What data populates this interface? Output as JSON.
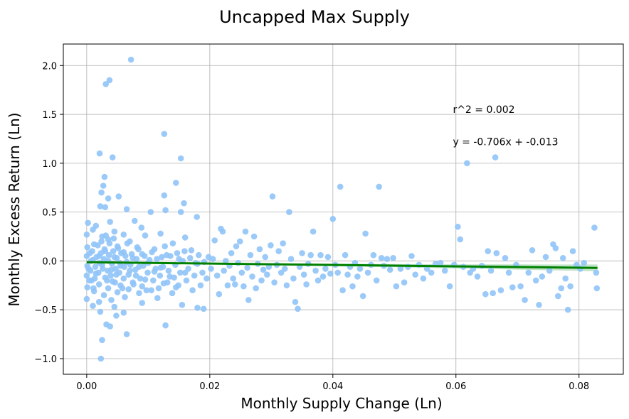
{
  "chart_data": {
    "type": "scatter",
    "title": "Uncapped Max Supply",
    "xlabel": "Monthly Supply Change (Ln)",
    "ylabel": "Monthly Excess Return (Ln)",
    "xlim": [
      -0.0038,
      0.0872
    ],
    "ylim": [
      -1.16,
      2.22
    ],
    "xticks": [
      0.0,
      0.02,
      0.04,
      0.06,
      0.08
    ],
    "xtick_labels": [
      "0.00",
      "0.02",
      "0.04",
      "0.06",
      "0.08"
    ],
    "yticks": [
      -1.0,
      -0.5,
      0.0,
      0.5,
      1.0,
      1.5,
      2.0
    ],
    "ytick_labels": [
      "−1.0",
      "−0.5",
      "0.0",
      "0.5",
      "1.0",
      "1.5",
      "2.0"
    ],
    "grid": true,
    "point_color": "#90c4f8",
    "regression": {
      "slope": -0.706,
      "intercept": -0.013,
      "x_range": [
        0.0,
        0.083
      ],
      "color": "#008000",
      "ci_color": "#b9dfc0",
      "ci_halfwidth_start": 0.006,
      "ci_halfwidth_end": 0.035
    },
    "annotations": [
      {
        "text": "r^2 = 0.002",
        "x": 0.0595,
        "y": 1.55
      },
      {
        "text": "y = -0.706x + -0.013",
        "x": 0.0595,
        "y": 1.22
      }
    ],
    "points": [
      [
        0.0072,
        2.06
      ],
      [
        0.0037,
        1.85
      ],
      [
        0.0031,
        1.81
      ],
      [
        0.0126,
        1.3
      ],
      [
        0.0021,
        1.1
      ],
      [
        0.0042,
        1.06
      ],
      [
        0.0153,
        1.05
      ],
      [
        0.0029,
        0.86
      ],
      [
        0.0145,
        0.8
      ],
      [
        0.0027,
        0.77
      ],
      [
        0.0024,
        0.7
      ],
      [
        0.0126,
        0.67
      ],
      [
        0.0052,
        0.66
      ],
      [
        0.0035,
        0.64
      ],
      [
        0.0158,
        0.59
      ],
      [
        0.0022,
        0.56
      ],
      [
        0.003,
        0.55
      ],
      [
        0.0065,
        0.53
      ],
      [
        0.0128,
        0.52
      ],
      [
        0.0104,
        0.5
      ],
      [
        0.0153,
        0.5
      ],
      [
        0.0179,
        0.45
      ],
      [
        0.0078,
        0.41
      ],
      [
        0.0038,
        0.4
      ],
      [
        0.0002,
        0.39
      ],
      [
        0.0015,
        0.36
      ],
      [
        0.0089,
        0.34
      ],
      [
        0.001,
        0.32
      ],
      [
        0.0045,
        0.3
      ],
      [
        0.012,
        0.28
      ],
      [
        0.006,
        0.27
      ],
      [
        0.0095,
        0.26
      ],
      [
        0.0025,
        0.25
      ],
      [
        0.016,
        0.24
      ],
      [
        0.0035,
        0.22
      ],
      [
        0.007,
        0.2
      ],
      [
        0.014,
        0.18
      ],
      [
        0.0012,
        0.17
      ],
      [
        0.005,
        0.15
      ],
      [
        0.0082,
        0.14
      ],
      [
        0.011,
        0.12
      ],
      [
        0.017,
        0.11
      ],
      [
        0.003,
        0.1
      ],
      [
        0.006,
        0.09
      ],
      [
        0.0005,
        0.08
      ],
      [
        0.009,
        0.07
      ],
      [
        0.013,
        0.06
      ],
      [
        0.002,
        0.05
      ],
      [
        0.0045,
        0.04
      ],
      [
        0.0075,
        0.03
      ],
      [
        0.015,
        0.02
      ],
      [
        0.001,
        0.01
      ],
      [
        0.0035,
        0.0
      ],
      [
        0.0065,
        -0.01
      ],
      [
        0.01,
        -0.02
      ],
      [
        0.018,
        -0.03
      ],
      [
        0.0025,
        -0.04
      ],
      [
        0.0055,
        -0.05
      ],
      [
        0.0085,
        -0.06
      ],
      [
        0.012,
        -0.07
      ],
      [
        0.0003,
        -0.08
      ],
      [
        0.004,
        -0.09
      ],
      [
        0.007,
        -0.1
      ],
      [
        0.011,
        -0.11
      ],
      [
        0.016,
        -0.12
      ],
      [
        0.0015,
        -0.13
      ],
      [
        0.0048,
        -0.14
      ],
      [
        0.008,
        -0.15
      ],
      [
        0.0135,
        -0.16
      ],
      [
        0.003,
        -0.17
      ],
      [
        0.006,
        -0.18
      ],
      [
        0.0095,
        -0.19
      ],
      [
        0.0008,
        -0.2
      ],
      [
        0.0042,
        -0.21
      ],
      [
        0.0075,
        -0.22
      ],
      [
        0.0125,
        -0.23
      ],
      [
        0.002,
        -0.24
      ],
      [
        0.0055,
        -0.25
      ],
      [
        0.009,
        -0.26
      ],
      [
        0.0145,
        -0.27
      ],
      [
        0.0035,
        -0.28
      ],
      [
        0.0068,
        -0.29
      ],
      [
        0.0105,
        -0.3
      ],
      [
        0.0012,
        -0.31
      ],
      [
        0.005,
        -0.32
      ],
      [
        0.0085,
        -0.33
      ],
      [
        0.0028,
        -0.35
      ],
      [
        0.0062,
        -0.37
      ],
      [
        0.0115,
        -0.38
      ],
      [
        0.004,
        -0.4
      ],
      [
        0.002,
        -0.42
      ],
      [
        0.009,
        -0.43
      ],
      [
        0.0155,
        -0.45
      ],
      [
        0.001,
        -0.46
      ],
      [
        0.0045,
        -0.47
      ],
      [
        0.018,
        -0.48
      ],
      [
        0.019,
        -0.49
      ],
      [
        0.0022,
        -0.52
      ],
      [
        0.006,
        -0.53
      ],
      [
        0.0048,
        -0.56
      ],
      [
        0.0032,
        -0.65
      ],
      [
        0.0038,
        -0.67
      ],
      [
        0.0128,
        -0.66
      ],
      [
        0.0065,
        -0.75
      ],
      [
        0.0025,
        -0.81
      ],
      [
        0.0023,
        -1.0
      ],
      [
        0.0,
        -0.39
      ],
      [
        0.0001,
        -0.27
      ],
      [
        0.0,
        -0.15
      ],
      [
        0.0001,
        -0.05
      ],
      [
        0.0,
        0.05
      ],
      [
        0.0001,
        0.14
      ],
      [
        0.0,
        0.27
      ],
      [
        0.0004,
        -0.2
      ],
      [
        0.0006,
        -0.1
      ],
      [
        0.0007,
        0.0
      ],
      [
        0.0009,
        0.1
      ],
      [
        0.0011,
        -0.28
      ],
      [
        0.0013,
        -0.18
      ],
      [
        0.0014,
        -0.06
      ],
      [
        0.0016,
        0.04
      ],
      [
        0.0018,
        0.16
      ],
      [
        0.0019,
        -0.12
      ],
      [
        0.0021,
        -0.02
      ],
      [
        0.0023,
        0.08
      ],
      [
        0.0024,
        0.2
      ],
      [
        0.0026,
        -0.08
      ],
      [
        0.0028,
        0.02
      ],
      [
        0.0029,
        0.12
      ],
      [
        0.0031,
        0.26
      ],
      [
        0.0033,
        -0.2
      ],
      [
        0.0034,
        -0.1
      ],
      [
        0.0036,
        0.06
      ],
      [
        0.0037,
        0.18
      ],
      [
        0.0039,
        -0.15
      ],
      [
        0.0041,
        -0.03
      ],
      [
        0.0043,
        0.1
      ],
      [
        0.0044,
        0.23
      ],
      [
        0.0046,
        -0.22
      ],
      [
        0.0047,
        -0.08
      ],
      [
        0.0049,
        0.03
      ],
      [
        0.0051,
        0.13
      ],
      [
        0.0053,
        -0.12
      ],
      [
        0.0054,
        -0.02
      ],
      [
        0.0056,
        0.08
      ],
      [
        0.0058,
        -0.28
      ],
      [
        0.0061,
        -0.06
      ],
      [
        0.0063,
        0.05
      ],
      [
        0.0066,
        0.18
      ],
      [
        0.0068,
        -0.14
      ],
      [
        0.0071,
        -0.04
      ],
      [
        0.0073,
        0.07
      ],
      [
        0.0076,
        -0.24
      ],
      [
        0.0079,
        -0.09
      ],
      [
        0.0081,
        0.02
      ],
      [
        0.0084,
        0.12
      ],
      [
        0.0087,
        -0.18
      ],
      [
        0.0092,
        -0.05
      ],
      [
        0.0094,
        0.05
      ],
      [
        0.0097,
        -0.3
      ],
      [
        0.0099,
        -0.12
      ],
      [
        0.0102,
        0.01
      ],
      [
        0.0106,
        0.09
      ],
      [
        0.0108,
        -0.2
      ],
      [
        0.0112,
        -0.08
      ],
      [
        0.0114,
        0.02
      ],
      [
        0.0117,
        -0.28
      ],
      [
        0.0119,
        -0.15
      ],
      [
        0.0122,
        0.04
      ],
      [
        0.0124,
        -0.06
      ],
      [
        0.0127,
        0.15
      ],
      [
        0.0131,
        -0.22
      ],
      [
        0.0133,
        -0.1
      ],
      [
        0.0136,
        0.05
      ],
      [
        0.0139,
        -0.33
      ],
      [
        0.0142,
        -0.17
      ],
      [
        0.0144,
        -0.04
      ],
      [
        0.0147,
        0.08
      ],
      [
        0.0149,
        -0.25
      ],
      [
        0.0152,
        -0.12
      ],
      [
        0.0156,
        0.0
      ],
      [
        0.0159,
        0.1
      ],
      [
        0.0162,
        -0.2
      ],
      [
        0.0165,
        -0.08
      ],
      [
        0.0168,
        0.03
      ],
      [
        0.0172,
        -0.3
      ],
      [
        0.0175,
        -0.15
      ],
      [
        0.0177,
        -0.02
      ],
      [
        0.0182,
        0.06
      ],
      [
        0.0185,
        -0.25
      ],
      [
        0.0188,
        -0.12
      ],
      [
        0.0191,
        -0.01
      ],
      [
        0.0195,
        -0.18
      ],
      [
        0.0198,
        0.04
      ],
      [
        0.0202,
        -0.08
      ],
      [
        0.0205,
        0.02
      ],
      [
        0.0208,
        0.21
      ],
      [
        0.0212,
        -0.15
      ],
      [
        0.0215,
        -0.34
      ],
      [
        0.0218,
        0.33
      ],
      [
        0.0221,
        0.3
      ],
      [
        0.0223,
        -0.1
      ],
      [
        0.0226,
        0.0
      ],
      [
        0.0229,
        -0.25
      ],
      [
        0.0232,
        -0.05
      ],
      [
        0.0235,
        0.08
      ],
      [
        0.0238,
        -0.18
      ],
      [
        0.0241,
        -0.24
      ],
      [
        0.0243,
        0.15
      ],
      [
        0.0246,
        -0.02
      ],
      [
        0.0249,
        0.2
      ],
      [
        0.0252,
        -0.12
      ],
      [
        0.0255,
        -0.26
      ],
      [
        0.0258,
        0.3
      ],
      [
        0.0261,
        -0.07
      ],
      [
        0.0263,
        -0.4
      ],
      [
        0.0266,
        0.06
      ],
      [
        0.0269,
        -0.16
      ],
      [
        0.0272,
        0.25
      ],
      [
        0.0275,
        -0.28
      ],
      [
        0.0278,
        -0.03
      ],
      [
        0.0281,
        0.12
      ],
      [
        0.0284,
        -0.2
      ],
      [
        0.0287,
        -0.09
      ],
      [
        0.029,
        0.04
      ],
      [
        0.0293,
        -0.14
      ],
      [
        0.0296,
        -0.06
      ],
      [
        0.0299,
        0.16
      ],
      [
        0.0302,
        0.66
      ],
      [
        0.0305,
        -0.22
      ],
      [
        0.0309,
        -0.04
      ],
      [
        0.0312,
        0.1
      ],
      [
        0.0316,
        -0.12
      ],
      [
        0.0319,
        0.18
      ],
      [
        0.0322,
        -0.08
      ],
      [
        0.0325,
        -0.25
      ],
      [
        0.0329,
        0.5
      ],
      [
        0.0332,
        0.02
      ],
      [
        0.0336,
        -0.18
      ],
      [
        0.0339,
        -0.42
      ],
      [
        0.0343,
        -0.49
      ],
      [
        0.0346,
        -0.06
      ],
      [
        0.035,
        0.08
      ],
      [
        0.0353,
        -0.14
      ],
      [
        0.0357,
        -0.24
      ],
      [
        0.036,
        -0.03
      ],
      [
        0.0364,
        0.06
      ],
      [
        0.0368,
        0.3
      ],
      [
        0.0372,
        -0.1
      ],
      [
        0.0376,
        -0.2
      ],
      [
        0.038,
        0.06
      ],
      [
        0.0384,
        -0.16
      ],
      [
        0.0388,
        -0.08
      ],
      [
        0.0392,
        0.04
      ],
      [
        0.0396,
        -0.13
      ],
      [
        0.04,
        0.43
      ],
      [
        0.0404,
        -0.04
      ],
      [
        0.0408,
        -0.12
      ],
      [
        0.0412,
        0.76
      ],
      [
        0.0416,
        -0.3
      ],
      [
        0.042,
        0.06
      ],
      [
        0.0424,
        -0.14
      ],
      [
        0.0428,
        -0.06
      ],
      [
        0.0432,
        -0.26
      ],
      [
        0.0436,
        -0.02
      ],
      [
        0.044,
        -0.16
      ],
      [
        0.0444,
        -0.08
      ],
      [
        0.0449,
        -0.36
      ],
      [
        0.0453,
        0.28
      ],
      [
        0.0457,
        -0.12
      ],
      [
        0.0462,
        -0.04
      ],
      [
        0.0466,
        0.06
      ],
      [
        0.0471,
        -0.2
      ],
      [
        0.0475,
        0.76
      ],
      [
        0.0479,
        0.03
      ],
      [
        0.0483,
        -0.05
      ],
      [
        0.0488,
        0.02
      ],
      [
        0.0493,
        -0.09
      ],
      [
        0.0498,
        0.03
      ],
      [
        0.0503,
        -0.26
      ],
      [
        0.051,
        -0.08
      ],
      [
        0.0516,
        -0.22
      ],
      [
        0.0522,
        -0.06
      ],
      [
        0.0528,
        0.05
      ],
      [
        0.0534,
        -0.14
      ],
      [
        0.054,
        -0.04
      ],
      [
        0.0547,
        -0.18
      ],
      [
        0.0553,
        -0.08
      ],
      [
        0.056,
        -0.12
      ],
      [
        0.0567,
        -0.03
      ],
      [
        0.0575,
        -0.02
      ],
      [
        0.0582,
        -0.1
      ],
      [
        0.059,
        -0.26
      ],
      [
        0.0597,
        -0.04
      ],
      [
        0.0603,
        0.35
      ],
      [
        0.0607,
        0.22
      ],
      [
        0.0612,
        -0.06
      ],
      [
        0.0618,
        1.0
      ],
      [
        0.0623,
        -0.12
      ],
      [
        0.0628,
        -0.08
      ],
      [
        0.0635,
        -0.16
      ],
      [
        0.0642,
        -0.05
      ],
      [
        0.0648,
        -0.34
      ],
      [
        0.0652,
        0.1
      ],
      [
        0.0657,
        -0.1
      ],
      [
        0.066,
        -0.33
      ],
      [
        0.0664,
        1.06
      ],
      [
        0.0666,
        0.08
      ],
      [
        0.0673,
        -0.3
      ],
      [
        0.068,
        0.03
      ],
      [
        0.0686,
        -0.12
      ],
      [
        0.0692,
        -0.27
      ],
      [
        0.0698,
        -0.04
      ],
      [
        0.0705,
        -0.26
      ],
      [
        0.0712,
        -0.4
      ],
      [
        0.0718,
        -0.12
      ],
      [
        0.0724,
        0.11
      ],
      [
        0.073,
        -0.2
      ],
      [
        0.0735,
        -0.45
      ],
      [
        0.074,
        -0.16
      ],
      [
        0.0746,
        0.04
      ],
      [
        0.0752,
        -0.1
      ],
      [
        0.0758,
        0.17
      ],
      [
        0.0762,
        0.13
      ],
      [
        0.0766,
        -0.36
      ],
      [
        0.0771,
        -0.28
      ],
      [
        0.0774,
        0.03
      ],
      [
        0.0778,
        -0.18
      ],
      [
        0.0782,
        -0.5
      ],
      [
        0.0786,
        -0.26
      ],
      [
        0.079,
        0.1
      ],
      [
        0.0796,
        -0.04
      ],
      [
        0.0802,
        -0.08
      ],
      [
        0.0808,
        -0.02
      ],
      [
        0.0825,
        0.34
      ],
      [
        0.0828,
        -0.12
      ],
      [
        0.0829,
        -0.28
      ]
    ]
  }
}
